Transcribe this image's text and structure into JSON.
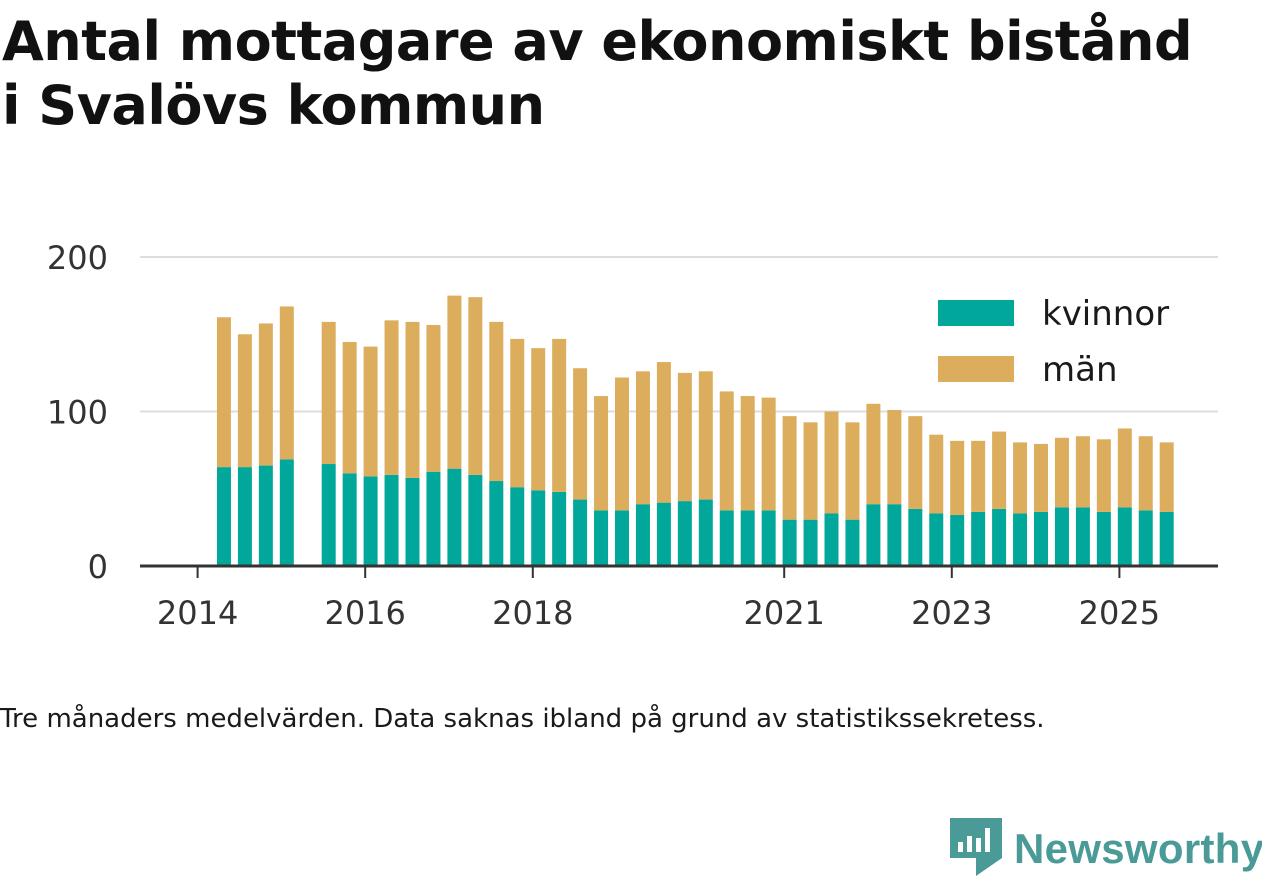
{
  "title": {
    "line1": "Antal mottagare av ekonomiskt bistånd",
    "line2": "i Svalövs kommun"
  },
  "note": "Tre månaders medelvärden. Data saknas ibland på grund av statistikssekretess.",
  "brand": {
    "name": "Newsworthy",
    "icon": "newsworthy-logo-icon"
  },
  "colors": {
    "kvinnor": "#00a79a",
    "man": "#dcad5c",
    "grid": "#dddddd",
    "axis": "#333333",
    "brand": "#4a9a98"
  },
  "chart_data": {
    "type": "bar",
    "stacked": true,
    "title": "Antal mottagare av ekonomiskt bistånd i Svalövs kommun",
    "xlabel": "",
    "ylabel": "",
    "ylim": [
      0,
      200
    ],
    "yticks": [
      0,
      100,
      200
    ],
    "xticks": [
      "2014",
      "2016",
      "2018",
      "2021",
      "2023",
      "2025"
    ],
    "legend": {
      "position": "top-right",
      "entries": [
        "kvinnor",
        "män"
      ]
    },
    "categories": [
      "2014-Q1",
      "2014-Q2",
      "2014-Q3",
      "2014-Q4",
      "2015-Q1",
      "2015-Q2",
      "2015-Q3",
      "2015-Q4",
      "2016-Q1",
      "2016-Q2",
      "2016-Q3",
      "2016-Q4",
      "2017-Q1",
      "2017-Q2",
      "2017-Q3",
      "2017-Q4",
      "2018-Q1",
      "2018-Q2",
      "2018-Q3",
      "2018-Q4",
      "2019-Q1",
      "2019-Q2",
      "2019-Q3",
      "2019-Q4",
      "2020-Q1",
      "2020-Q2",
      "2020-Q3",
      "2020-Q4",
      "2021-Q1",
      "2021-Q2",
      "2021-Q3",
      "2021-Q4",
      "2022-Q1",
      "2022-Q2",
      "2022-Q3",
      "2022-Q4",
      "2023-Q1",
      "2023-Q2",
      "2023-Q3",
      "2023-Q4",
      "2024-Q1",
      "2024-Q2",
      "2024-Q3",
      "2024-Q4",
      "2025-Q1",
      "2025-Q2",
      "2025-Q3",
      "2025-Q4"
    ],
    "series": [
      {
        "name": "kvinnor",
        "values": [
          null,
          64,
          64,
          65,
          69,
          null,
          66,
          60,
          58,
          59,
          57,
          61,
          63,
          59,
          55,
          51,
          49,
          48,
          43,
          36,
          36,
          40,
          41,
          42,
          43,
          36,
          36,
          36,
          30,
          30,
          34,
          30,
          40,
          40,
          37,
          34,
          33,
          35,
          37,
          34,
          35,
          38,
          38,
          35,
          38,
          36,
          35,
          null
        ]
      },
      {
        "name": "män",
        "values": [
          null,
          97,
          86,
          92,
          99,
          null,
          92,
          85,
          84,
          100,
          101,
          95,
          112,
          115,
          103,
          96,
          92,
          99,
          85,
          74,
          86,
          86,
          91,
          83,
          83,
          77,
          74,
          73,
          67,
          63,
          66,
          63,
          65,
          61,
          60,
          51,
          48,
          46,
          50,
          46,
          44,
          45,
          46,
          47,
          51,
          48,
          45,
          null
        ]
      }
    ]
  }
}
